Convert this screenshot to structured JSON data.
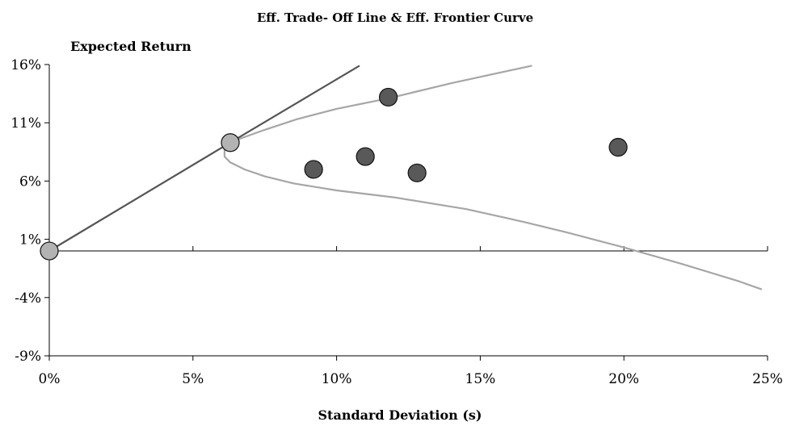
{
  "chart_data": {
    "type": "scatter",
    "title": "Eff. Trade- Off Line & Eff. Frontier Curve",
    "ylabel": "Expected Return",
    "xlabel": "Standard Deviation (s)",
    "xlim": [
      0,
      25
    ],
    "ylim": [
      -9,
      16
    ],
    "x_ticks": [
      0,
      5,
      10,
      15,
      20,
      25
    ],
    "y_ticks": [
      -9,
      -4,
      1,
      6,
      11,
      16
    ],
    "x_tick_labels": [
      "0%",
      "5%",
      "10%",
      "15%",
      "20%",
      "25%"
    ],
    "y_tick_labels": [
      "-9%",
      "-4%",
      "1%",
      "6%",
      "11%",
      "16%"
    ],
    "x_axis_position_y": 0,
    "grid": false,
    "series": [
      {
        "kind": "line",
        "color": "#555555",
        "points": [
          [
            0,
            0
          ],
          [
            6.3,
            9.3
          ],
          [
            10.8,
            15.9
          ]
        ]
      },
      {
        "kind": "line",
        "color": "#a6a6a6",
        "points": [
          [
            16.8,
            15.9
          ],
          [
            14.0,
            14.4
          ],
          [
            11.8,
            13.1
          ],
          [
            10.0,
            12.2
          ],
          [
            8.6,
            11.3
          ],
          [
            7.5,
            10.4
          ],
          [
            6.6,
            9.6
          ],
          [
            6.3,
            9.2
          ],
          [
            6.1,
            8.7
          ],
          [
            6.1,
            8.1
          ],
          [
            6.3,
            7.6
          ],
          [
            6.8,
            7.0
          ],
          [
            7.5,
            6.4
          ],
          [
            8.5,
            5.8
          ],
          [
            10.0,
            5.2
          ],
          [
            12.0,
            4.6
          ],
          [
            14.5,
            3.6
          ],
          [
            16.5,
            2.5
          ],
          [
            18.0,
            1.6
          ],
          [
            20.0,
            0.3
          ],
          [
            22.0,
            -1.1
          ],
          [
            24.0,
            -2.6
          ],
          [
            24.8,
            -3.3
          ]
        ]
      },
      {
        "kind": "points",
        "role": "special",
        "color": "#b3b3b3",
        "points": [
          [
            0,
            0
          ],
          [
            6.3,
            9.3
          ]
        ]
      },
      {
        "kind": "points",
        "role": "assets",
        "color": "#595959",
        "points": [
          [
            9.2,
            7.0
          ],
          [
            11.0,
            8.1
          ],
          [
            11.8,
            13.2
          ],
          [
            12.8,
            6.7
          ],
          [
            19.8,
            8.9
          ]
        ]
      }
    ]
  }
}
